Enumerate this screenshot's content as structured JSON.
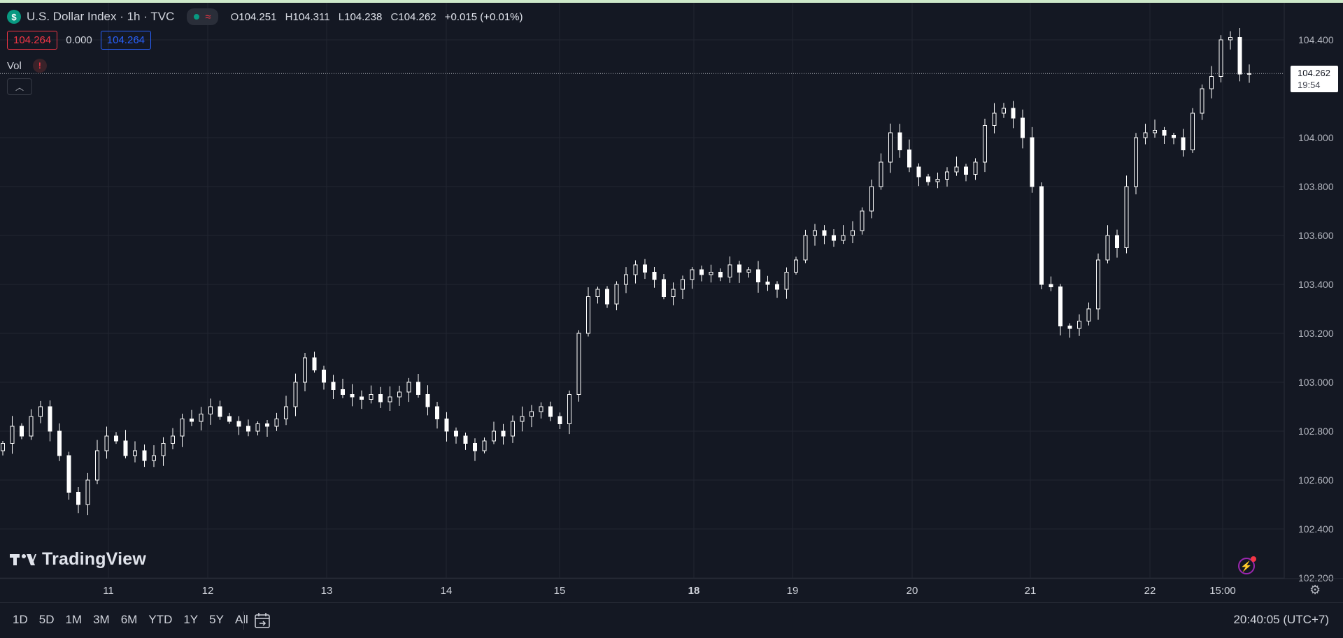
{
  "header": {
    "symbol_logo": "$",
    "title": "U.S. Dollar Index · 1h · TVC",
    "status_icon": "market-open-dot",
    "ohlc": {
      "o_label": "O",
      "o_value": "104.251",
      "h_label": "H",
      "h_value": "104.311",
      "l_label": "L",
      "l_value": "104.238",
      "c_label": "C",
      "c_value": "104.262",
      "change": "+0.015 (+0.01%)"
    }
  },
  "quote": {
    "bid": "104.264",
    "spread": "0.000",
    "ask": "104.264"
  },
  "volume": {
    "label": "Vol",
    "warning": "!"
  },
  "price_axis": {
    "labels": [
      "104.400",
      "104.000",
      "103.800",
      "103.600",
      "103.400",
      "103.200",
      "103.000",
      "102.800",
      "102.600",
      "102.400",
      "102.200"
    ],
    "last_price": "104.262",
    "countdown": "19:54"
  },
  "time_axis": {
    "labels": [
      "11",
      "12",
      "13",
      "14",
      "15",
      "18",
      "19",
      "20",
      "21",
      "22",
      "15:00"
    ]
  },
  "brand": {
    "name": "TradingView"
  },
  "bottom_bar": {
    "ranges": [
      "1D",
      "5D",
      "1M",
      "3M",
      "6M",
      "YTD",
      "1Y",
      "5Y",
      "All"
    ],
    "clock": "20:40:05 (UTC+7)"
  },
  "colors": {
    "background": "#141823",
    "candle": "#ffffff",
    "bid": "#f23645",
    "ask": "#2962ff",
    "accent": "#089981"
  },
  "chart_data": {
    "type": "candlestick",
    "title": "U.S. Dollar Index · 1h · TVC",
    "ylim": [
      102.2,
      104.4
    ],
    "x_ticks": [
      "11",
      "12",
      "13",
      "14",
      "15",
      "18",
      "19",
      "20",
      "21",
      "22",
      "15:00"
    ],
    "closes": [
      102.75,
      102.82,
      102.78,
      102.86,
      102.9,
      102.8,
      102.7,
      102.55,
      102.5,
      102.6,
      102.72,
      102.78,
      102.76,
      102.7,
      102.72,
      102.68,
      102.7,
      102.75,
      102.78,
      102.85,
      102.84,
      102.87,
      102.9,
      102.86,
      102.84,
      102.82,
      102.8,
      102.83,
      102.82,
      102.85,
      102.9,
      103.0,
      103.1,
      103.05,
      103.0,
      102.97,
      102.95,
      102.94,
      102.93,
      102.95,
      102.92,
      102.94,
      102.96,
      103.0,
      102.95,
      102.9,
      102.85,
      102.8,
      102.78,
      102.75,
      102.72,
      102.76,
      102.8,
      102.78,
      102.84,
      102.86,
      102.88,
      102.9,
      102.86,
      102.83,
      102.95,
      103.2,
      103.35,
      103.38,
      103.32,
      103.4,
      103.44,
      103.48,
      103.45,
      103.42,
      103.35,
      103.38,
      103.42,
      103.46,
      103.44,
      103.45,
      103.43,
      103.48,
      103.45,
      103.46,
      103.41,
      103.4,
      103.38,
      103.45,
      103.5,
      103.6,
      103.62,
      103.6,
      103.58,
      103.6,
      103.62,
      103.7,
      103.8,
      103.9,
      104.02,
      103.95,
      103.88,
      103.84,
      103.82,
      103.83,
      103.86,
      103.88,
      103.85,
      103.9,
      104.05,
      104.1,
      104.12,
      104.08,
      104.0,
      103.8,
      103.4,
      103.39,
      103.23,
      103.22,
      103.25,
      103.3,
      103.5,
      103.6,
      103.55,
      103.8,
      104.0,
      104.02,
      104.03,
      104.01,
      104.0,
      103.95,
      104.1,
      104.2,
      104.25,
      104.4,
      104.41,
      104.26,
      104.262
    ]
  }
}
